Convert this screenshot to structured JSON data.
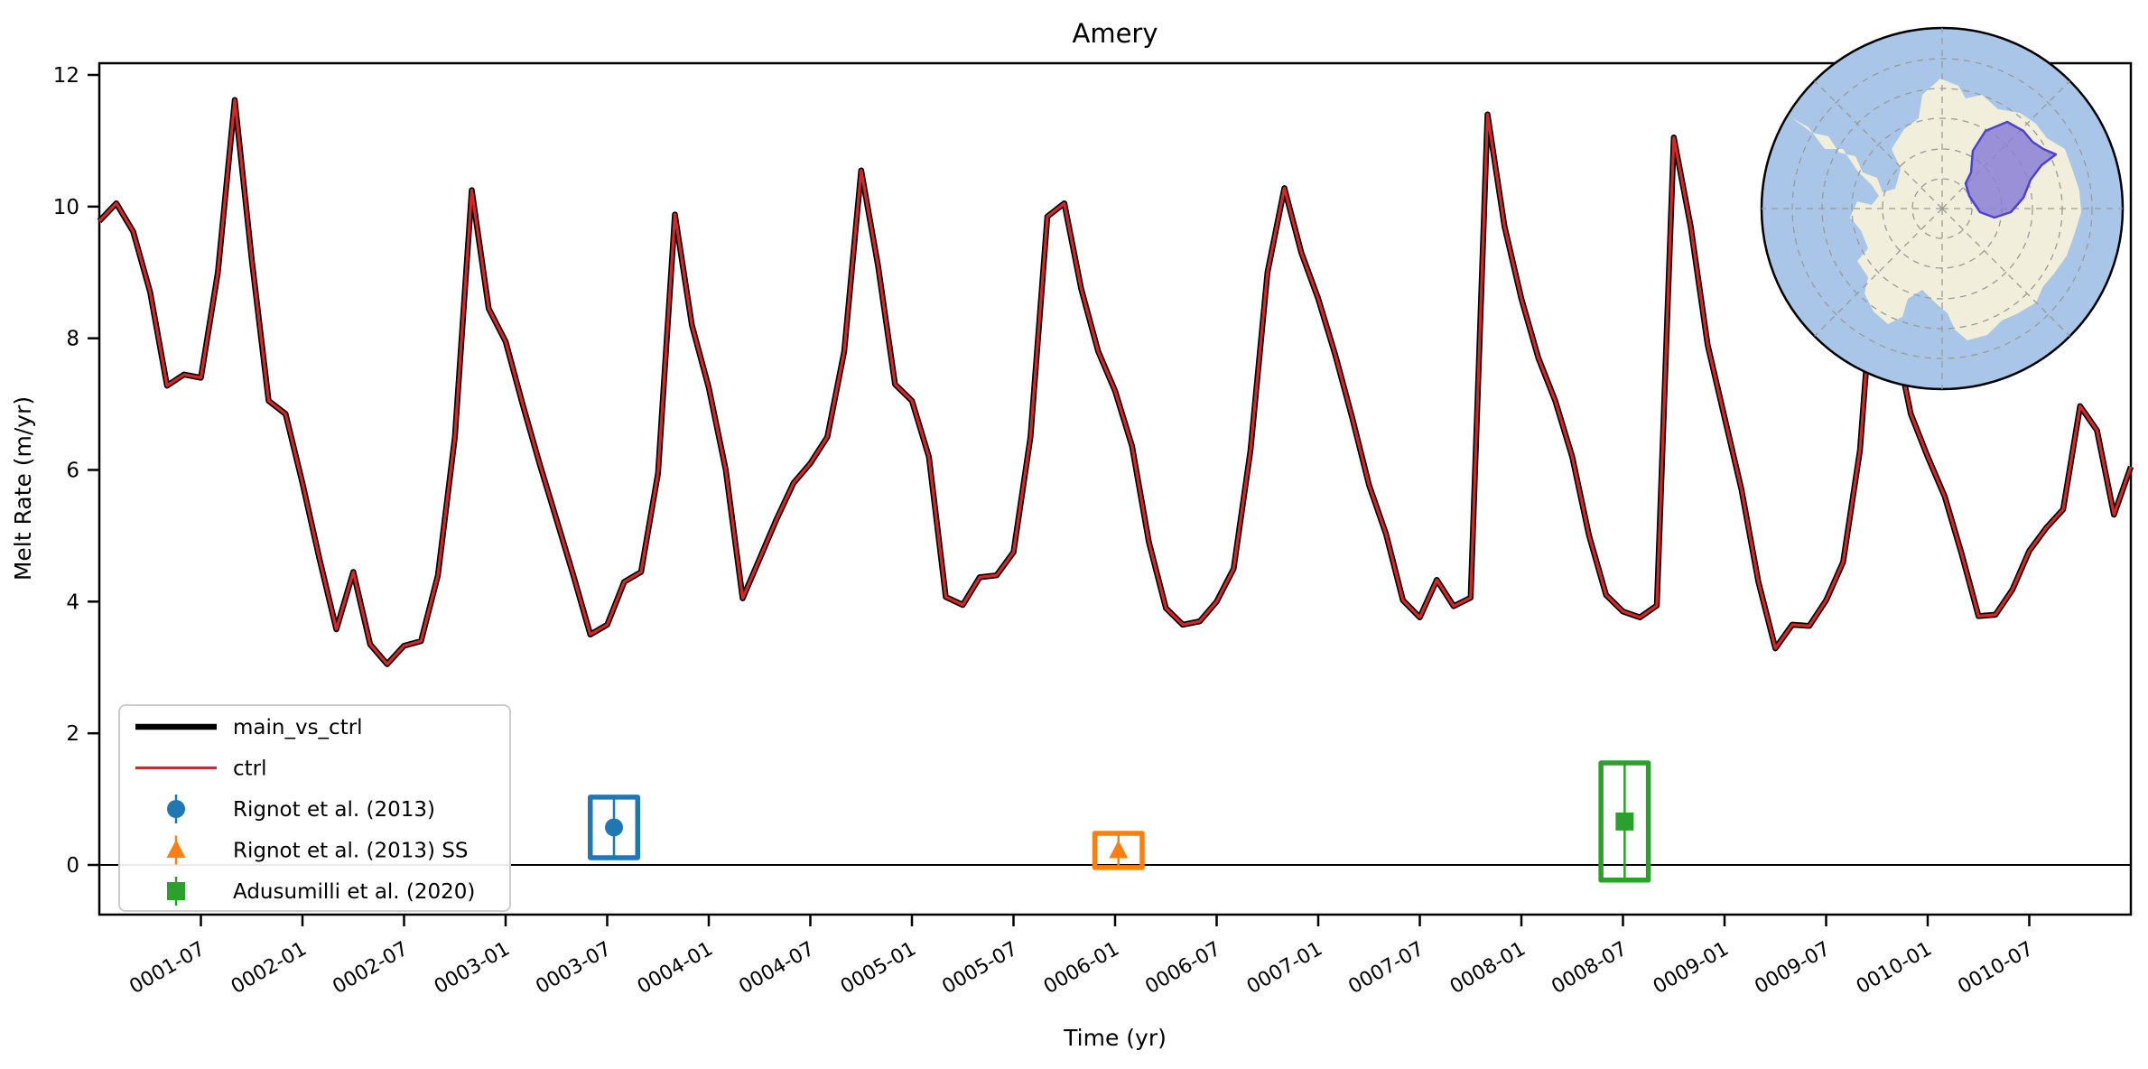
{
  "title": "Amery",
  "axes": {
    "x_label": "Time (yr)",
    "y_label": "Melt Rate (m/yr)",
    "y_ticks": [
      0,
      2,
      4,
      6,
      8,
      10,
      12
    ],
    "y_range": [
      -0.77,
      12.18
    ],
    "x_tick_month_indices": [
      6,
      12,
      18,
      24,
      30,
      36,
      42,
      48,
      54,
      60,
      66,
      72,
      78,
      84,
      90,
      96,
      102,
      108,
      114
    ],
    "x_tick_labels": [
      "0001-07",
      "0002-01",
      "0002-07",
      "0003-01",
      "0003-07",
      "0004-01",
      "0004-07",
      "0005-01",
      "0005-07",
      "0006-01",
      "0006-07",
      "0007-01",
      "0007-07",
      "0008-01",
      "0008-07",
      "0009-01",
      "0009-07",
      "0010-01",
      "0010-07"
    ]
  },
  "chart_data": {
    "type": "line",
    "title": "Amery",
    "xlabel": "Time (yr)",
    "ylabel": "Melt Rate (m/yr)",
    "x_start": "0001-01",
    "x_step_months": 1,
    "ylim": [
      -0.77,
      12.18
    ],
    "grid": false,
    "legend_position": "lower left",
    "zero_line": 0,
    "series": [
      {
        "name": "main_vs_ctrl",
        "color": "#000000",
        "line_width": 6.5,
        "values": [
          9.78,
          10.05,
          9.62,
          8.7,
          7.28,
          7.45,
          7.4,
          9.0,
          11.62,
          9.2,
          7.05,
          6.85,
          5.8,
          4.65,
          3.58,
          4.45,
          3.35,
          3.05,
          3.33,
          3.4,
          4.4,
          6.5,
          10.25,
          8.45,
          7.95,
          7.0,
          6.1,
          5.25,
          4.4,
          3.5,
          3.65,
          4.3,
          4.45,
          5.95,
          9.88,
          8.2,
          7.25,
          6.0,
          4.05,
          4.65,
          5.25,
          5.8,
          6.1,
          6.5,
          7.8,
          10.55,
          9.1,
          7.3,
          7.05,
          6.2,
          4.07,
          3.95,
          4.37,
          4.4,
          4.75,
          6.5,
          9.85,
          10.05,
          8.75,
          7.8,
          7.2,
          6.36,
          4.9,
          3.9,
          3.65,
          3.7,
          4.0,
          4.5,
          6.3,
          9.0,
          10.28,
          9.3,
          8.6,
          7.75,
          6.8,
          5.77,
          5.03,
          4.02,
          3.76,
          4.33,
          3.93,
          4.06,
          11.4,
          9.7,
          8.6,
          7.7,
          7.05,
          6.2,
          5.0,
          4.1,
          3.85,
          3.76,
          3.94,
          11.05,
          9.7,
          7.9,
          6.8,
          5.7,
          4.3,
          3.29,
          3.65,
          3.63,
          4.02,
          4.6,
          6.3,
          9.7,
          8.1,
          6.85,
          6.2,
          5.6,
          4.73,
          3.78,
          3.8,
          4.18,
          4.77,
          5.12,
          5.4,
          6.97,
          6.6,
          5.32,
          6.05
        ]
      },
      {
        "name": "ctrl",
        "color": "#d62728",
        "line_width": 3.2,
        "values_same_as": "main_vs_ctrl"
      }
    ],
    "observations": [
      {
        "label": "Rignot et al. (2013)",
        "marker": "circle",
        "color": "#1f77b4",
        "time": "0003-07",
        "month_index": 30.4,
        "value": 0.57,
        "error": 0.46,
        "box_half_months": 1.4
      },
      {
        "label": "Rignot et al. (2013) SS",
        "marker": "triangle",
        "color": "#ff7f0e",
        "time": "0006-01",
        "month_index": 60.2,
        "value": 0.22,
        "error": 0.26,
        "box_half_months": 1.4
      },
      {
        "label": "Adusumilli et al. (2020)",
        "marker": "square",
        "color": "#2ca02c",
        "time": "0008-07",
        "month_index": 90.1,
        "value": 0.66,
        "error": 0.89,
        "box_half_months": 1.4
      }
    ]
  },
  "inset_map": {
    "region_name": "Amery basin",
    "ocean_color": "#a9c6e8",
    "land_color": "#f1efdb",
    "graticule_color": "#9a9a94",
    "border_color": "#000000",
    "region_fill": "#8a7fd6",
    "region_stroke": "#4d41d0"
  }
}
